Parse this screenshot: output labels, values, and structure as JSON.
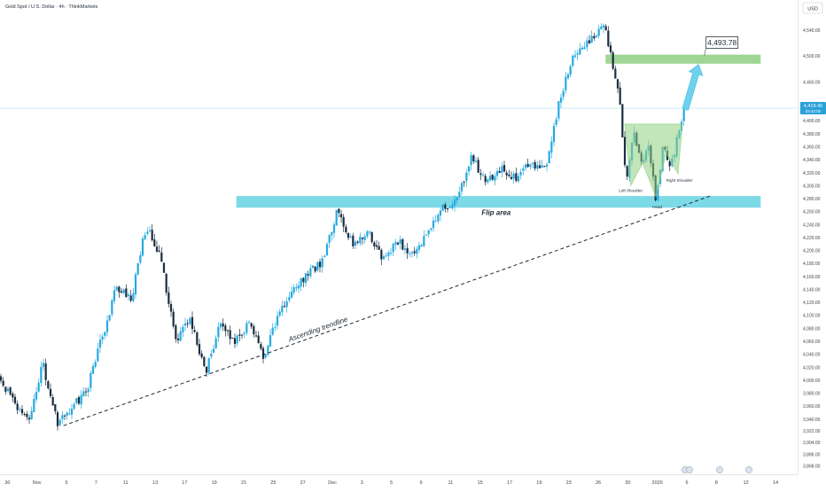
{
  "title": "Gold Spot / U.S. Dollar · 4h · ThinkMarkets",
  "currency": "USD",
  "colors": {
    "up": "#26a9e0",
    "down": "#1b2d3f",
    "zone_blue": "#5bd1e0",
    "zone_green": "#8fcf82",
    "arrow": "#6fd2ec",
    "price_label_bg": "#2aa0d8"
  },
  "chart_data": {
    "type": "candlestick",
    "timeframe": "4h",
    "ylim": [
      3855,
      4578
    ],
    "y_ticks": [
      "4,540.00",
      "4,500.00",
      "4,460.00",
      "4,420.00",
      "4,400.00",
      "4,380.00",
      "4,360.00",
      "4,340.00",
      "4,320.00",
      "4,300.00",
      "4,280.00",
      "4,260.00",
      "4,240.00",
      "4,220.00",
      "4,200.00",
      "4,180.00",
      "4,160.00",
      "4,140.00",
      "4,120.00",
      "4,100.00",
      "4,080.00",
      "4,060.00",
      "4,040.00",
      "4,020.00",
      "4,000.00",
      "3,980.00",
      "3,960.00",
      "3,940.00",
      "3,922.00",
      "3,904.00",
      "3,886.00",
      "3,868.00"
    ],
    "x_ticks": [
      {
        "label": "30",
        "x": 0.5
      },
      {
        "label": "Nov",
        "x": 2.5
      },
      {
        "label": "5",
        "x": 4.5
      },
      {
        "label": "7",
        "x": 6.5
      },
      {
        "label": "11",
        "x": 8.5
      },
      {
        "label": "13",
        "x": 10.5
      },
      {
        "label": "17",
        "x": 12.5
      },
      {
        "label": "19",
        "x": 14.5
      },
      {
        "label": "21",
        "x": 16.5
      },
      {
        "label": "25",
        "x": 18.5
      },
      {
        "label": "27",
        "x": 20.5
      },
      {
        "label": "Dec",
        "x": 22.5
      },
      {
        "label": "3",
        "x": 24.5
      },
      {
        "label": "5",
        "x": 26.5
      },
      {
        "label": "9",
        "x": 28.5
      },
      {
        "label": "11",
        "x": 30.5
      },
      {
        "label": "15",
        "x": 32.5
      },
      {
        "label": "17",
        "x": 34.5
      },
      {
        "label": "19",
        "x": 36.5
      },
      {
        "label": "23",
        "x": 38.5
      },
      {
        "label": "26",
        "x": 40.5
      },
      {
        "label": "30",
        "x": 42.5
      },
      {
        "label": "2026",
        "x": 44.5
      },
      {
        "label": "6",
        "x": 46.5
      },
      {
        "label": "8",
        "x": 48.5
      },
      {
        "label": "12",
        "x": 50.5
      },
      {
        "label": "14",
        "x": 52.5
      }
    ],
    "pivots": [
      [
        0,
        4005
      ],
      [
        2,
        3935
      ],
      [
        3,
        4025
      ],
      [
        4,
        3932
      ],
      [
        6,
        3985
      ],
      [
        8,
        4145
      ],
      [
        9,
        4125
      ],
      [
        10,
        4240
      ],
      [
        11,
        4185
      ],
      [
        12,
        4060
      ],
      [
        13,
        4095
      ],
      [
        14,
        4010
      ],
      [
        15,
        4085
      ],
      [
        16,
        4060
      ],
      [
        17,
        4090
      ],
      [
        18,
        4035
      ],
      [
        19,
        4105
      ],
      [
        20,
        4145
      ],
      [
        21,
        4165
      ],
      [
        22,
        4185
      ],
      [
        23,
        4265
      ],
      [
        24,
        4205
      ],
      [
        25,
        4230
      ],
      [
        26,
        4185
      ],
      [
        27,
        4215
      ],
      [
        28,
        4195
      ],
      [
        29,
        4225
      ],
      [
        30,
        4265
      ],
      [
        31,
        4275
      ],
      [
        32,
        4345
      ],
      [
        33,
        4305
      ],
      [
        34,
        4325
      ],
      [
        35,
        4310
      ],
      [
        36,
        4335
      ],
      [
        37,
        4325
      ],
      [
        38,
        4435
      ],
      [
        39,
        4505
      ],
      [
        40,
        4525
      ],
      [
        41,
        4545
      ],
      [
        42,
        4440
      ],
      [
        42.5,
        4310
      ],
      [
        43,
        4380
      ],
      [
        43.5,
        4330
      ],
      [
        44,
        4355
      ],
      [
        44.5,
        4280
      ],
      [
        45,
        4365
      ],
      [
        45.5,
        4325
      ],
      [
        46,
        4380
      ],
      [
        46.4,
        4420
      ]
    ],
    "last_price": "4,419.40",
    "countdown": "03:42:02",
    "resistance_zone": {
      "from": 4488,
      "to": 4502,
      "x_start": 41,
      "x_end": 51.5
    },
    "support_zone": {
      "from": 4266,
      "to": 4284,
      "x_start": 16,
      "x_end": 51.5
    },
    "target": {
      "label": "4,493.78",
      "x": 47.2,
      "y": 4500
    },
    "trendline": {
      "from": [
        4.3,
        3930
      ],
      "to": [
        48.2,
        4285
      ],
      "label": "Ascending trendline"
    },
    "annotations": [
      {
        "text": "Flip area",
        "x": 32.6,
        "y": 4255
      },
      {
        "text": "Left Shoulder",
        "x": 42.7,
        "y": 4290
      },
      {
        "text": "Head",
        "x": 44.5,
        "y": 4265
      },
      {
        "text": "Right Shoulder",
        "x": 46.0,
        "y": 4306
      }
    ],
    "pattern": "head-and-shoulders",
    "x_count": 54
  }
}
